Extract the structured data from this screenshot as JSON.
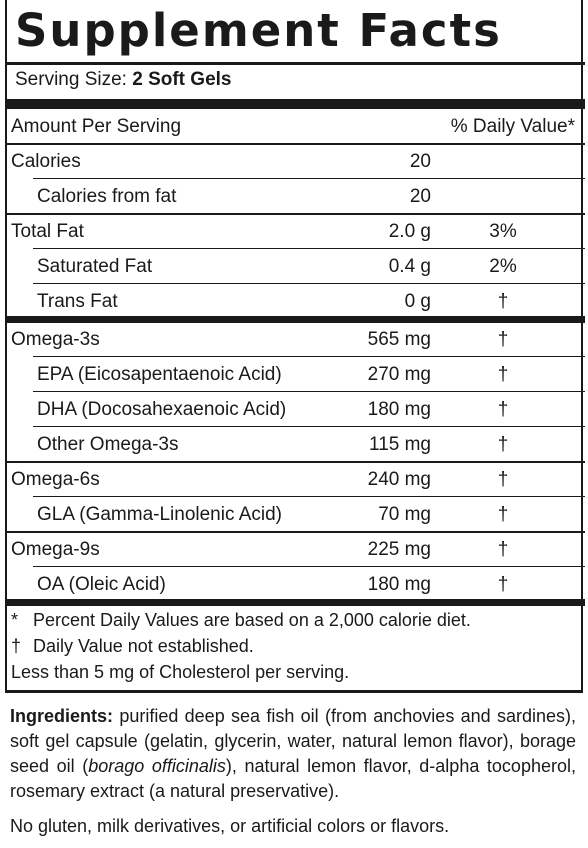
{
  "title": "Supplement Facts",
  "serving": {
    "label": "Serving Size:",
    "value": "2 Soft Gels"
  },
  "header": {
    "amount": "Amount Per Serving",
    "dv": "% Daily Value*"
  },
  "rows": [
    {
      "name": "Calories",
      "amount": "20",
      "dv": ""
    },
    {
      "name": "Calories from fat",
      "amount": "20",
      "dv": ""
    },
    {
      "name": "Total Fat",
      "amount": "2.0 g",
      "dv": "3%"
    },
    {
      "name": "Saturated Fat",
      "amount": "0.4 g",
      "dv": "2%"
    },
    {
      "name": "Trans Fat",
      "amount": "0 g",
      "dv": "†"
    },
    {
      "name": "Omega-3s",
      "amount": "565 mg",
      "dv": "†"
    },
    {
      "name": "EPA (Eicosapentaenoic Acid)",
      "amount": "270 mg",
      "dv": "†"
    },
    {
      "name": "DHA (Docosahexaenoic Acid)",
      "amount": "180 mg",
      "dv": "†"
    },
    {
      "name": "Other Omega-3s",
      "amount": "115 mg",
      "dv": "†"
    },
    {
      "name": "Omega-6s",
      "amount": "240 mg",
      "dv": "†"
    },
    {
      "name": "GLA (Gamma-Linolenic Acid)",
      "amount": "70 mg",
      "dv": "†"
    },
    {
      "name": "Omega-9s",
      "amount": "225 mg",
      "dv": "†"
    },
    {
      "name": "OA (Oleic Acid)",
      "amount": "180 mg",
      "dv": "†"
    }
  ],
  "footnotes": {
    "percent": {
      "mark": "*",
      "text": "Percent Daily Values are based on a 2,000 calorie diet."
    },
    "dagger": {
      "mark": "†",
      "text": "Daily Value not established."
    },
    "cholesterol": "Less than 5 mg of Cholesterol per serving."
  },
  "ingredients": {
    "label": "Ingredients:",
    "text_before": " purified deep sea fish oil (from anchovies and sardines), soft gel capsule (gelatin, glycerin, water, natural lemon flavor), borage seed oil (",
    "italic": "borago officinalis",
    "text_after": "), natural lemon flavor, d-alpha tocopherol, rosemary extract (a natural preservative)."
  },
  "free_from": "No gluten, milk derivatives, or artificial colors or flavors."
}
